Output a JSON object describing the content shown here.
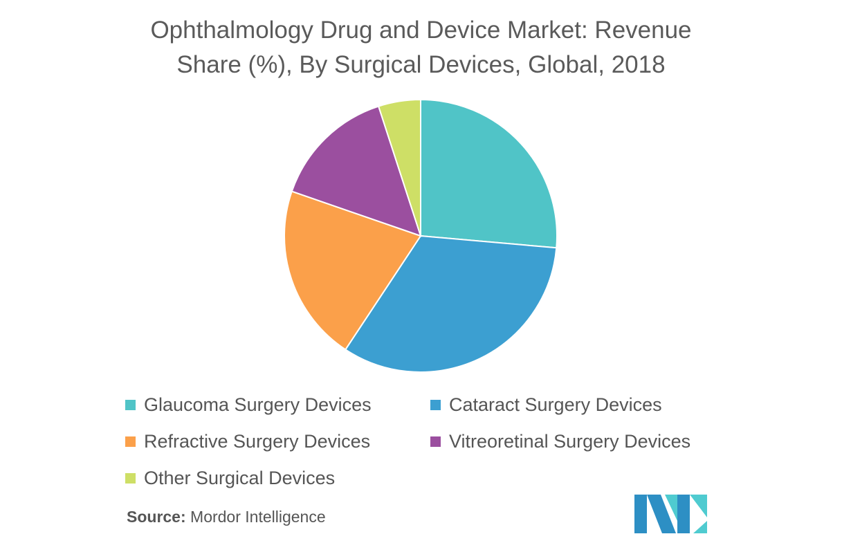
{
  "chart_data": {
    "type": "pie",
    "title": "Ophthalmology Drug and Device Market: Revenue Share (%), By Surgical Devices, Global, 2018",
    "title_lines": [
      "Ophthalmology Drug and Device Market: Revenue",
      "Share (%), By Surgical Devices, Global, 2018"
    ],
    "categories": [
      "Glaucoma Surgery Devices",
      "Cataract Surgery Devices",
      "Refractive Surgery Devices",
      "Vitreoretinal Surgery Devices",
      "Other Surgical Devices"
    ],
    "values": [
      26.4,
      32.9,
      21.0,
      14.7,
      5.0
    ],
    "colors": [
      "#50C4C7",
      "#3C9FD1",
      "#FBA04A",
      "#9B4F9F",
      "#CEDF66"
    ],
    "legend_position": "bottom"
  },
  "source": {
    "label": "Source:",
    "text": "Mordor Intelligence"
  }
}
